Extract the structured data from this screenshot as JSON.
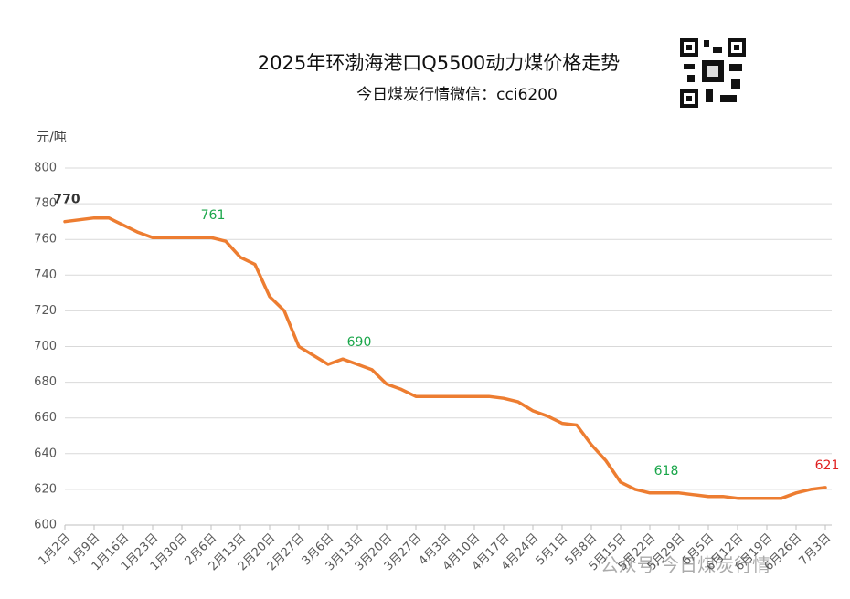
{
  "chart_data": {
    "type": "line",
    "title": "2025年环渤海港口Q5500动力煤价格走势",
    "subtitle": "今日煤炭行情微信：cci6200",
    "y_axis_label": "元/吨",
    "watermark": "公众号·今日煤炭行情",
    "categories": [
      "1月2日",
      null,
      "1月9日",
      null,
      "1月16日",
      null,
      "1月23日",
      null,
      "1月30日",
      null,
      "2月6日",
      null,
      "2月13日",
      null,
      "2月20日",
      null,
      "2月27日",
      null,
      "3月6日",
      null,
      "3月13日",
      null,
      "3月20日",
      null,
      "3月27日",
      null,
      "4月3日",
      null,
      "4月10日",
      null,
      "4月17日",
      null,
      "4月24日",
      null,
      "5月1日",
      null,
      "5月8日",
      null,
      "5月15日",
      null,
      "5月22日",
      null,
      "5月29日",
      null,
      "6月5日",
      null,
      "6月12日",
      null,
      "6月19日",
      null,
      "6月26日",
      null,
      "7月3日"
    ],
    "values": [
      770,
      771,
      772,
      772,
      768,
      764,
      761,
      761,
      761,
      761,
      761,
      759,
      750,
      746,
      728,
      720,
      700,
      695,
      690,
      693,
      690,
      687,
      679,
      676,
      672,
      672,
      672,
      672,
      672,
      672,
      671,
      669,
      664,
      661,
      657,
      656,
      645,
      636,
      624,
      620,
      618,
      618,
      618,
      617,
      616,
      616,
      615,
      615,
      615,
      615,
      618,
      620,
      621
    ],
    "value_labels": [
      "770",
      null,
      null,
      null,
      null,
      null,
      null,
      null,
      null,
      null,
      "761",
      null,
      null,
      null,
      null,
      null,
      null,
      null,
      null,
      null,
      "690",
      null,
      null,
      null,
      null,
      null,
      null,
      null,
      null,
      null,
      null,
      null,
      null,
      null,
      null,
      null,
      null,
      null,
      null,
      null,
      null,
      "618",
      null,
      null,
      null,
      null,
      null,
      null,
      null,
      null,
      null,
      null,
      "621"
    ],
    "value_label_colors": [
      "#333333",
      null,
      null,
      null,
      null,
      null,
      null,
      null,
      null,
      null,
      "#1aa64a",
      null,
      null,
      null,
      null,
      null,
      null,
      null,
      null,
      null,
      "#1aa64a",
      null,
      null,
      null,
      null,
      null,
      null,
      null,
      null,
      null,
      null,
      null,
      null,
      null,
      null,
      null,
      null,
      null,
      null,
      null,
      null,
      "#1aa64a",
      null,
      null,
      null,
      null,
      null,
      null,
      null,
      null,
      null,
      null,
      "#e02020"
    ],
    "color": "#ed7d31",
    "ylim": [
      600,
      800
    ],
    "yticks": [
      600,
      620,
      640,
      660,
      680,
      700,
      720,
      740,
      760,
      780,
      800
    ],
    "grid": true
  }
}
